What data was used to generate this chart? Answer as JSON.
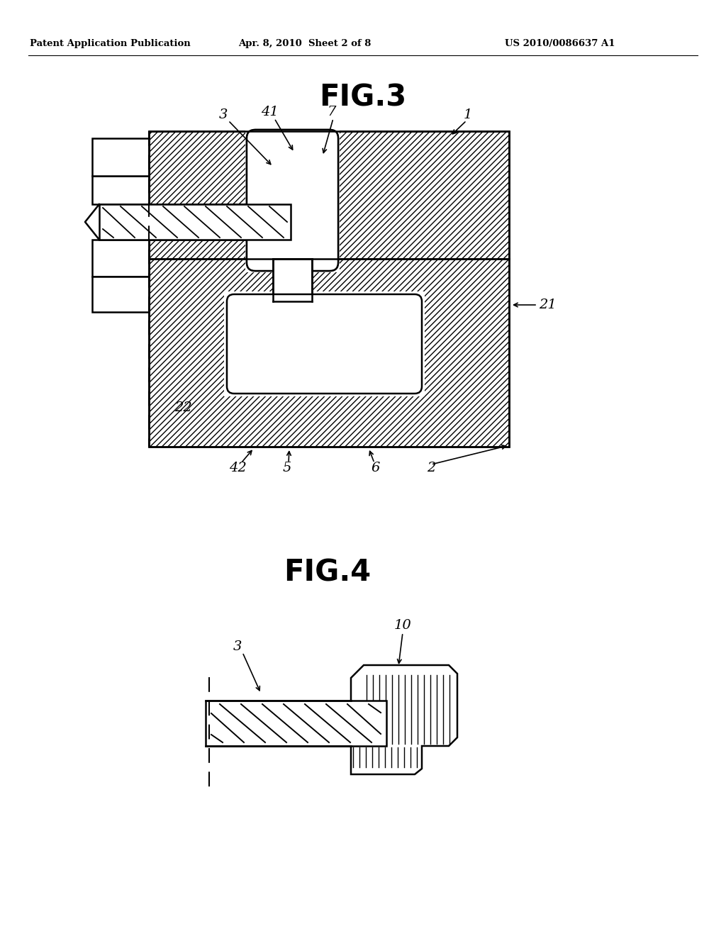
{
  "bg_color": "#ffffff",
  "header_text": "Patent Application Publication",
  "header_date": "Apr. 8, 2010  Sheet 2 of 8",
  "header_patent": "US 2010/0086637 A1",
  "fig3_title": "FIG.3",
  "fig4_title": "FIG.4",
  "line_color": "#000000"
}
